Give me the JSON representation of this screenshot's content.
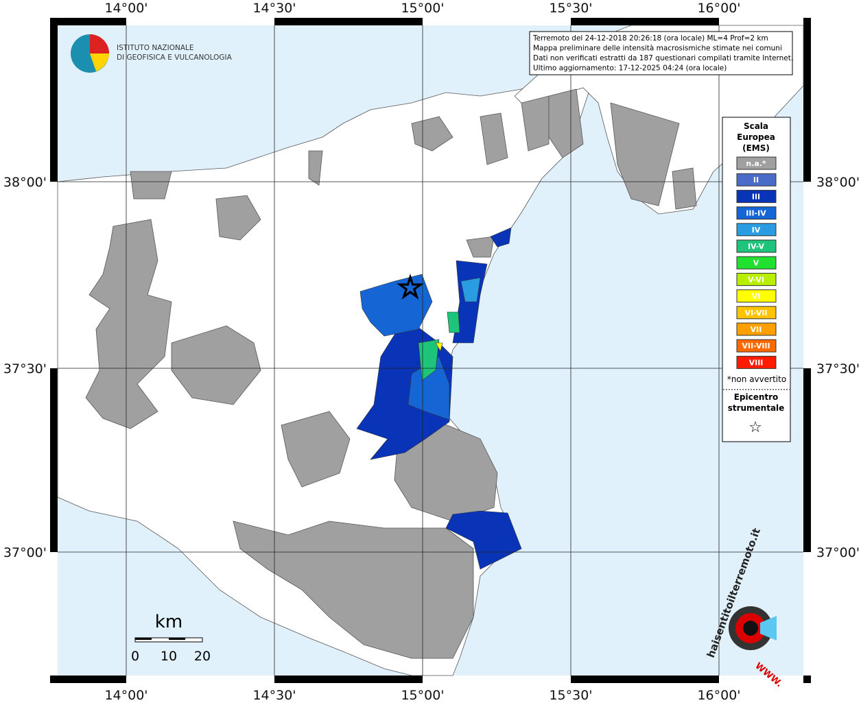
{
  "map": {
    "lon_labels": [
      "14°00'",
      "14°30'",
      "15°00'",
      "15°30'",
      "16°00'"
    ],
    "lat_labels": [
      "38°00'",
      "37°30'",
      "37°00'"
    ],
    "logo": [
      "ISTITUTO NAZIONALE",
      "DI GEOFISICA E VULCANOLOGIA"
    ],
    "info": [
      "Terremoto del 24-12-2018 20:26:18 (ora locale) ML=4 Prof=2 km",
      "Mappa preliminare delle intensità macrosismiche stimate nei comuni",
      "Dati non verificati estratti da 187 questionari compilati tramite Internet.",
      "Ultimo aggiornamento: 17-12-2025 04:24 (ora locale)"
    ],
    "legend": {
      "title": [
        "Scala",
        "Europea",
        "(EMS)"
      ],
      "items": [
        {
          "label": "n.a.*",
          "color": "#a0a0a0"
        },
        {
          "label": "II",
          "color": "#4a6cc8"
        },
        {
          "label": "III",
          "color": "#0a34b8"
        },
        {
          "label": "III-IV",
          "color": "#1566d4"
        },
        {
          "label": "IV",
          "color": "#2a9de2"
        },
        {
          "label": "IV-V",
          "color": "#1dc47a"
        },
        {
          "label": "V",
          "color": "#20e030"
        },
        {
          "label": "V-VI",
          "color": "#b8ef00"
        },
        {
          "label": "VI",
          "color": "#ffff00"
        },
        {
          "label": "VI-VII",
          "color": "#ffc400"
        },
        {
          "label": "VII",
          "color": "#ffa000"
        },
        {
          "label": "VII-VIII",
          "color": "#ff6a00"
        },
        {
          "label": "VIII",
          "color": "#ff1a00"
        }
      ],
      "note": "*non avvertito",
      "epicentre": [
        "Epicentro",
        "strumentale"
      ],
      "star": "☆"
    },
    "scale": {
      "unit": "km",
      "ticks": [
        "0",
        "10",
        "20"
      ]
    },
    "site_logo": {
      "name": "haisentitoilterremoto.it",
      "prefix": "WWW."
    }
  }
}
